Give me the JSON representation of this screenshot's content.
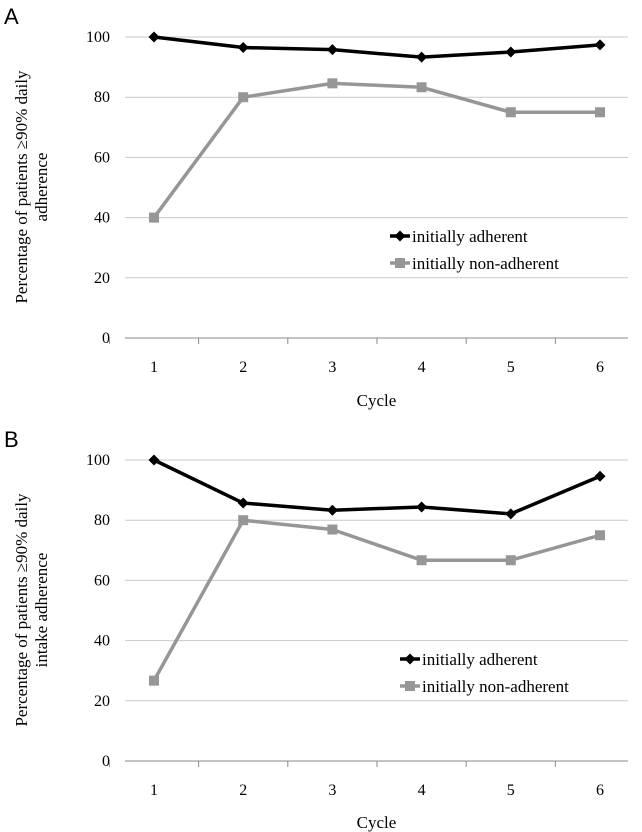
{
  "chart_data": [
    {
      "panel": "A",
      "type": "line",
      "categories": [
        "1",
        "2",
        "3",
        "4",
        "5",
        "6"
      ],
      "xlabel": "Cycle",
      "ylabel_lines": [
        "Percentage of patients ≥90% daily",
        "adherence"
      ],
      "ylim": [
        0,
        100
      ],
      "yticks": [
        "0",
        "20",
        "40",
        "60",
        "80",
        "100"
      ],
      "grid": true,
      "legend_position": "center-right",
      "series": [
        {
          "name": "initially adherent",
          "color": "#000000",
          "marker": "diamond",
          "values": [
            100,
            96.5,
            95.8,
            93.3,
            95,
            97.4
          ]
        },
        {
          "name": "initially non-adherent",
          "color": "#969696",
          "marker": "square",
          "values": [
            40,
            80,
            84.6,
            83.3,
            75,
            75
          ]
        }
      ]
    },
    {
      "panel": "B",
      "type": "line",
      "categories": [
        "1",
        "2",
        "3",
        "4",
        "5",
        "6"
      ],
      "xlabel": "Cycle",
      "ylabel_lines": [
        "Percentage of patients ≥90% daily",
        "intake adherence"
      ],
      "ylim": [
        0,
        100
      ],
      "yticks": [
        "0",
        "20",
        "40",
        "60",
        "80",
        "100"
      ],
      "grid": true,
      "legend_position": "bottom-right",
      "series": [
        {
          "name": "initially adherent",
          "color": "#000000",
          "marker": "diamond",
          "values": [
            100,
            85.7,
            83.3,
            84.4,
            82.1,
            94.6
          ]
        },
        {
          "name": "initially non-adherent",
          "color": "#969696",
          "marker": "square",
          "values": [
            26.7,
            80,
            76.9,
            66.7,
            66.7,
            75
          ]
        }
      ]
    }
  ]
}
